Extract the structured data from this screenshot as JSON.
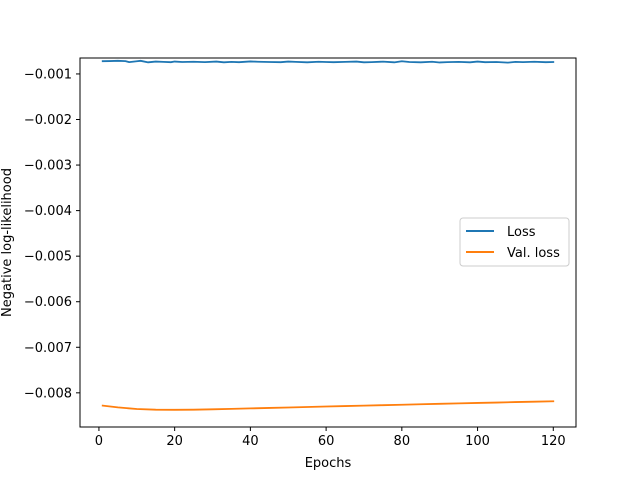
{
  "chart_data": {
    "type": "line",
    "title": "",
    "xlabel": "Epochs",
    "ylabel": "Negative log-likelihood",
    "xlim": [
      -5,
      126
    ],
    "ylim": [
      -0.00875,
      -0.00065
    ],
    "xticks": [
      0,
      20,
      40,
      60,
      80,
      100,
      120
    ],
    "xtick_labels": [
      "0",
      "20",
      "40",
      "60",
      "80",
      "100",
      "120"
    ],
    "yticks": [
      -0.008,
      -0.007,
      -0.006,
      -0.005,
      -0.004,
      -0.003,
      -0.002,
      -0.001
    ],
    "ytick_labels": [
      "−0.008",
      "−0.007",
      "−0.006",
      "−0.005",
      "−0.004",
      "−0.003",
      "−0.002",
      "−0.001"
    ],
    "grid": false,
    "legend_position": "center-right",
    "series": [
      {
        "name": "Loss",
        "color": "#1f77b4",
        "x": [
          1,
          3,
          5,
          7,
          8,
          10,
          11,
          13,
          15,
          17,
          19,
          20,
          22,
          25,
          28,
          31,
          33,
          35,
          37,
          40,
          42,
          45,
          48,
          50,
          52,
          55,
          58,
          60,
          62,
          65,
          68,
          70,
          72,
          75,
          78,
          80,
          82,
          85,
          88,
          90,
          92,
          95,
          98,
          100,
          102,
          105,
          108,
          110,
          112,
          115,
          118,
          120
        ],
        "values": [
          -0.00072,
          -0.000717,
          -0.000712,
          -0.000718,
          -0.00074,
          -0.000722,
          -0.000712,
          -0.000745,
          -0.000728,
          -0.000735,
          -0.000742,
          -0.000728,
          -0.000738,
          -0.000732,
          -0.00074,
          -0.000728,
          -0.000745,
          -0.000735,
          -0.000742,
          -0.000725,
          -0.000732,
          -0.000738,
          -0.000742,
          -0.000728,
          -0.000735,
          -0.000745,
          -0.000732,
          -0.000738,
          -0.000742,
          -0.000735,
          -0.000728,
          -0.000745,
          -0.00074,
          -0.00073,
          -0.000745,
          -0.000722,
          -0.000738,
          -0.000745,
          -0.000732,
          -0.000748,
          -0.00074,
          -0.000735,
          -0.000745,
          -0.000728,
          -0.000742,
          -0.000738,
          -0.000752,
          -0.000735,
          -0.00074,
          -0.000732,
          -0.000742,
          -0.000738
        ]
      },
      {
        "name": "Val. loss",
        "color": "#ff7f0e",
        "x": [
          1,
          5,
          10,
          15,
          20,
          25,
          30,
          35,
          40,
          45,
          50,
          55,
          60,
          65,
          70,
          75,
          80,
          85,
          90,
          95,
          100,
          105,
          110,
          115,
          120
        ],
        "values": [
          -0.00828,
          -0.00832,
          -0.008355,
          -0.00837,
          -0.008373,
          -0.00837,
          -0.008362,
          -0.008352,
          -0.008342,
          -0.008332,
          -0.008322,
          -0.008311,
          -0.0083,
          -0.00829,
          -0.00828,
          -0.008271,
          -0.008261,
          -0.008251,
          -0.008241,
          -0.008231,
          -0.008222,
          -0.008213,
          -0.008203,
          -0.008194,
          -0.008185
        ]
      }
    ]
  }
}
